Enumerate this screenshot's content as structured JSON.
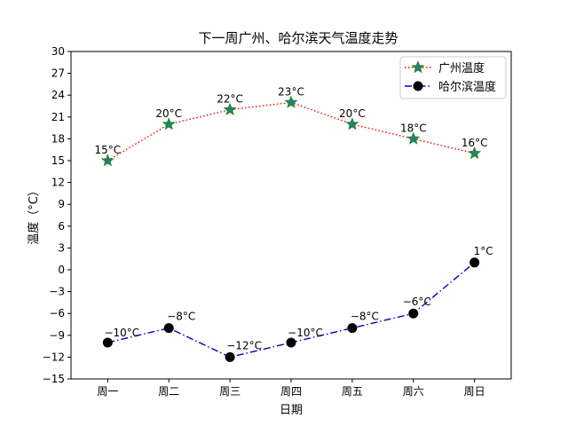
{
  "chart_data": {
    "type": "line",
    "title": "下一周广州、哈尔滨天气温度走势",
    "xlabel": "日期",
    "ylabel": "温度（°C）",
    "categories": [
      "周一",
      "周二",
      "周三",
      "周四",
      "周五",
      "周六",
      "周日"
    ],
    "ylim": [
      -15,
      30
    ],
    "yticks": [
      -15,
      -12,
      -9,
      -6,
      -3,
      0,
      3,
      6,
      9,
      12,
      15,
      18,
      21,
      24,
      27,
      30
    ],
    "grid": false,
    "legend_position": "top-right",
    "series": [
      {
        "name": "广州温度",
        "values": [
          15,
          20,
          22,
          23,
          20,
          18,
          16
        ],
        "labels": [
          "15°C",
          "20°C",
          "22°C",
          "23°C",
          "20°C",
          "18°C",
          "16°C"
        ],
        "line_color": "#ff0000",
        "line_style": "dotted",
        "marker": "star",
        "marker_face": "#1f77b4",
        "marker_edge": "#228b22"
      },
      {
        "name": "哈尔滨温度",
        "values": [
          -10,
          -8,
          -12,
          -10,
          -8,
          -6,
          1
        ],
        "labels": [
          "−10°C",
          "−8°C",
          "−12°C",
          "−10°C",
          "−8°C",
          "−6°C",
          "1°C"
        ],
        "line_color": "#0000cd",
        "line_style": "dashdot",
        "marker": "circle",
        "marker_face": "#000000",
        "marker_edge": "#000000"
      }
    ]
  }
}
